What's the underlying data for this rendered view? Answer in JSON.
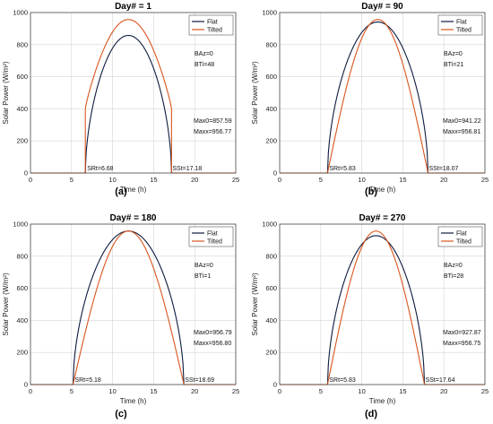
{
  "colors": {
    "flat": "#0d1b3e",
    "tilted": "#d9551e",
    "grid": "#d6d6d6"
  },
  "chart_data": [
    {
      "type": "line",
      "title": "Day# = 1",
      "xlabel": "Time (h)",
      "ylabel": "Solar Power (W/m²)",
      "xlim": [
        0,
        25
      ],
      "ylim": [
        0,
        1000
      ],
      "xticks": [
        0,
        5,
        10,
        15,
        20,
        25
      ],
      "yticks": [
        0,
        200,
        400,
        600,
        800,
        1000
      ],
      "grid": true,
      "legend": "top-right",
      "series": [
        {
          "name": "Flat",
          "rise": 6.68,
          "set": 17.18,
          "peak": 857.59,
          "jump": 0
        },
        {
          "name": "Tilted",
          "rise": 6.68,
          "set": 17.18,
          "peak": 956.77,
          "jump": 400
        }
      ],
      "annotations": {
        "baz": "BAz=0",
        "bti": "BTi=48",
        "max0": "Max0=857.59",
        "maxx": "Maxx=956.77",
        "sr": "SRt=6.68",
        "ss": "SSt=17.18"
      },
      "sublabel": "(a)"
    },
    {
      "type": "line",
      "title": "Day# = 90",
      "xlabel": "Time (h)",
      "ylabel": "Solar Power (W/m²)",
      "xlim": [
        0,
        25
      ],
      "ylim": [
        0,
        1000
      ],
      "xticks": [
        0,
        5,
        10,
        15,
        20,
        25
      ],
      "yticks": [
        0,
        200,
        400,
        600,
        800,
        1000
      ],
      "grid": true,
      "legend": "top-right",
      "series": [
        {
          "name": "Flat",
          "rise": 5.83,
          "set": 18.07,
          "peak": 941.22,
          "jump": 0
        },
        {
          "name": "Tilted",
          "rise": 5.83,
          "set": 18.07,
          "peak": 956.81,
          "jump": 0
        }
      ],
      "annotations": {
        "baz": "BAz=0",
        "bti": "BTi=21",
        "max0": "Max0=941.22",
        "maxx": "Maxx=956.81",
        "sr": "SRt=5.83",
        "ss": "SSt=18.07"
      },
      "sublabel": "(b)"
    },
    {
      "type": "line",
      "title": "Day# = 180",
      "xlabel": "Time (h)",
      "ylabel": "Solar Power (W/m²)",
      "xlim": [
        0,
        25
      ],
      "ylim": [
        0,
        1000
      ],
      "xticks": [
        0,
        5,
        10,
        15,
        20,
        25
      ],
      "yticks": [
        0,
        200,
        400,
        600,
        800,
        1000
      ],
      "grid": true,
      "legend": "top-right",
      "series": [
        {
          "name": "Flat",
          "rise": 5.18,
          "set": 18.69,
          "peak": 956.79,
          "jump": 0
        },
        {
          "name": "Tilted",
          "rise": 5.18,
          "set": 18.69,
          "peak": 956.8,
          "jump": 0
        }
      ],
      "annotations": {
        "baz": "BAz=0",
        "bti": "BTi=1",
        "max0": "Max0=956.79",
        "maxx": "Maxx=956.80",
        "sr": "SRt=5.18",
        "ss": "SSt=18.69"
      },
      "sublabel": "(c)"
    },
    {
      "type": "line",
      "title": "Day# = 270",
      "xlabel": "Time (h)",
      "ylabel": "Solar Power (W/m²)",
      "xlim": [
        0,
        25
      ],
      "ylim": [
        0,
        1000
      ],
      "xticks": [
        0,
        5,
        10,
        15,
        20,
        25
      ],
      "yticks": [
        0,
        200,
        400,
        600,
        800,
        1000
      ],
      "grid": true,
      "legend": "top-right",
      "series": [
        {
          "name": "Flat",
          "rise": 5.83,
          "set": 17.64,
          "peak": 927.87,
          "jump": 0
        },
        {
          "name": "Tilted",
          "rise": 5.83,
          "set": 17.64,
          "peak": 956.75,
          "jump": 0
        }
      ],
      "annotations": {
        "baz": "BAz=0",
        "bti": "BTi=28",
        "max0": "Max0=927.87",
        "maxx": "Maxx=956.75",
        "sr": "SRt=5.83",
        "ss": "SSt=17.64"
      },
      "sublabel": "(d)"
    }
  ]
}
